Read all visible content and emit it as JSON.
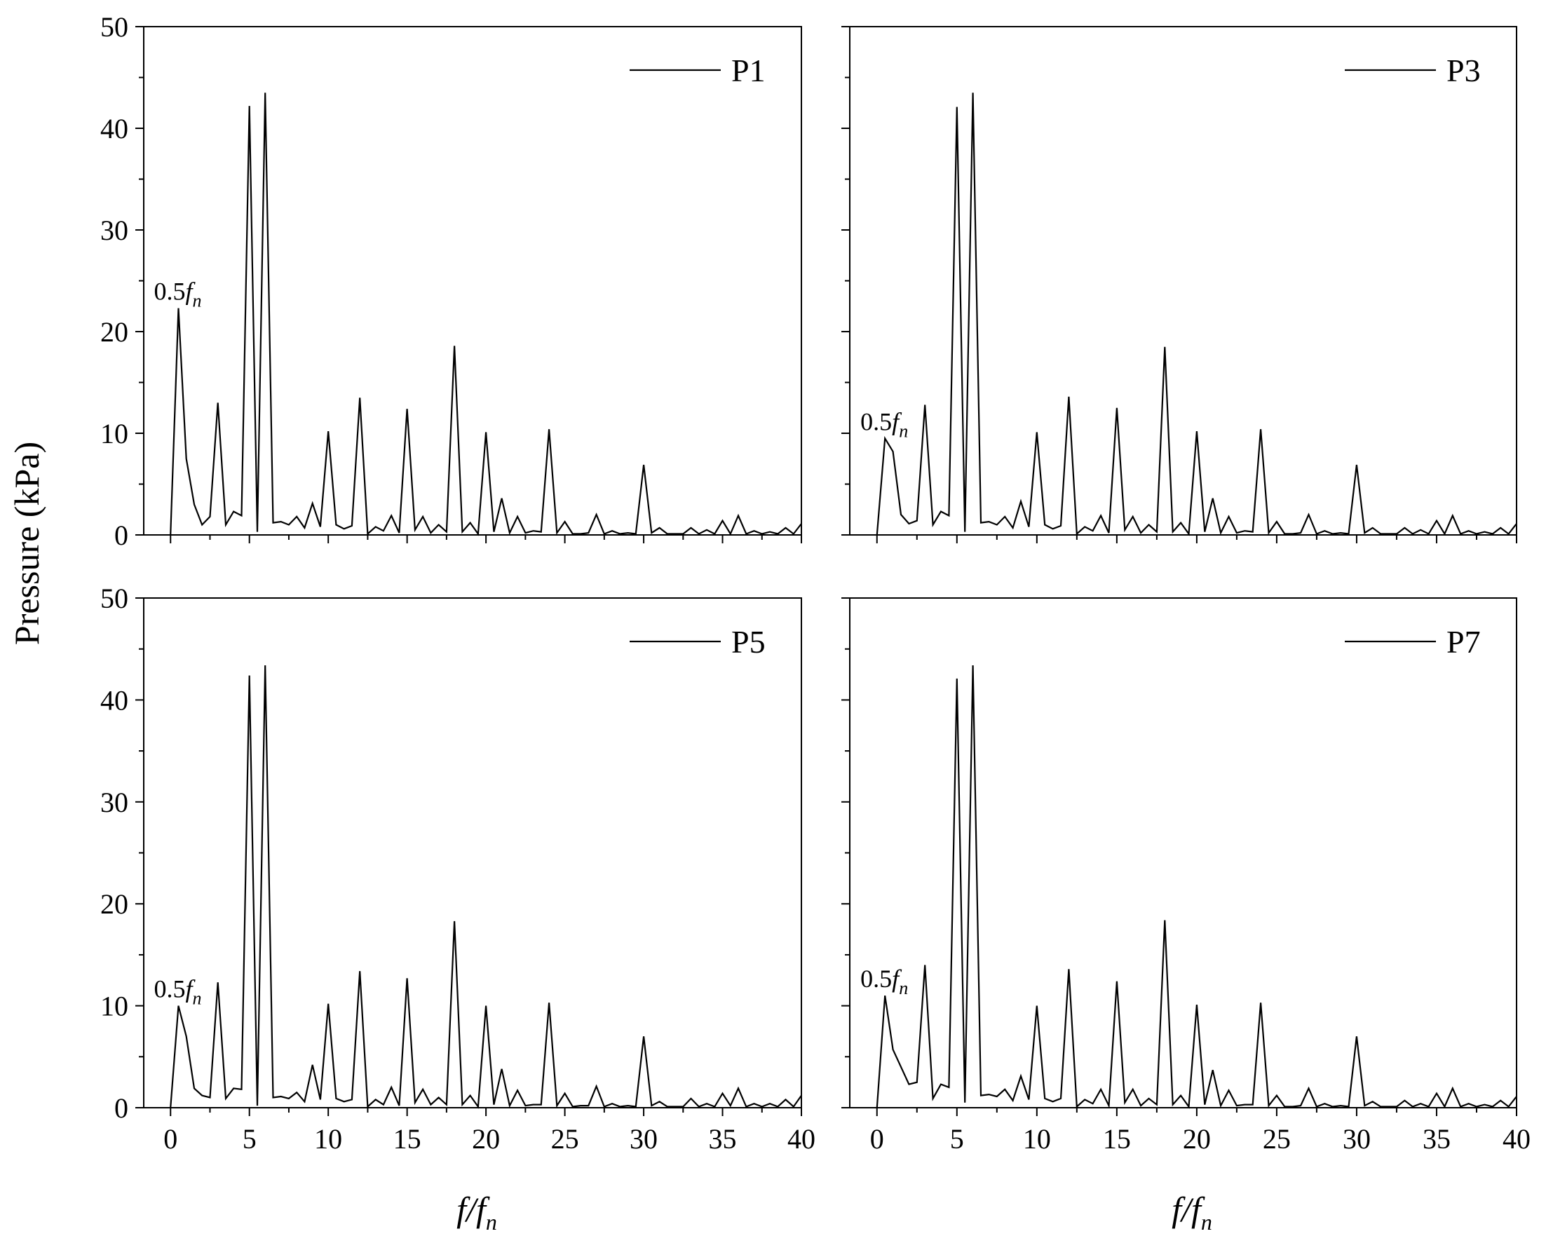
{
  "figure": {
    "ylabel": "Pressure (kPa)",
    "xlabel_main": "f/f",
    "xlabel_sub": "n"
  },
  "chart_data": [
    {
      "type": "line",
      "legend": "P1",
      "annotation": {
        "text": "0.5f",
        "sub": "n",
        "x": 0.5,
        "y": 22.3
      },
      "xlim": [
        -1.7,
        40
      ],
      "ylim": [
        0,
        50
      ],
      "xticks": [
        0,
        5,
        10,
        15,
        20,
        25,
        30,
        35,
        40
      ],
      "yticks": [
        0,
        10,
        20,
        30,
        40,
        50
      ],
      "x": [
        0,
        0.5,
        1,
        1.5,
        2,
        2.5,
        3,
        3.5,
        4,
        4.5,
        5,
        5.5,
        6,
        6.5,
        7,
        7.5,
        8,
        8.5,
        9,
        9.5,
        10,
        10.5,
        11,
        11.5,
        12,
        12.5,
        13,
        13.5,
        14,
        14.5,
        15,
        15.5,
        16,
        16.5,
        17,
        17.5,
        18,
        18.5,
        19,
        19.5,
        20,
        20.5,
        21,
        21.5,
        22,
        22.5,
        23,
        23.5,
        24,
        24.5,
        25,
        25.5,
        26,
        26.5,
        27,
        27.5,
        28,
        28.5,
        29,
        29.5,
        30,
        30.5,
        31,
        31.5,
        32,
        32.5,
        33,
        33.5,
        34,
        34.5,
        35,
        35.5,
        36,
        36.5,
        37,
        37.5,
        38,
        38.5,
        39,
        39.5,
        40
      ],
      "y": [
        0,
        22.3,
        7.5,
        3.0,
        1.0,
        1.8,
        13.0,
        1.0,
        2.3,
        1.9,
        42.2,
        0.3,
        43.5,
        1.2,
        1.3,
        1.0,
        1.8,
        0.7,
        3.1,
        0.8,
        10.2,
        1.0,
        0.6,
        0.9,
        13.5,
        0.1,
        0.8,
        0.4,
        1.9,
        0.2,
        12.4,
        0.5,
        1.8,
        0.2,
        1.0,
        0.3,
        18.6,
        0.3,
        1.2,
        0.1,
        10.1,
        0.3,
        3.6,
        0.2,
        1.8,
        0.2,
        0.4,
        0.3,
        10.4,
        0.2,
        1.3,
        0.1,
        0.1,
        0.2,
        2.0,
        0.1,
        0.4,
        0.1,
        0.2,
        0.1,
        6.9,
        0.2,
        0.7,
        0.1,
        0.1,
        0.1,
        0.7,
        0.1,
        0.5,
        0.1,
        1.4,
        0.1,
        1.9,
        0.1,
        0.4,
        0.1,
        0.3,
        0.1,
        0.7,
        0.1,
        1.1
      ]
    },
    {
      "type": "line",
      "legend": "P3",
      "annotation": {
        "text": "0.5f",
        "sub": "n",
        "x": 0.5,
        "y": 9.5
      },
      "xlim": [
        -1.7,
        40
      ],
      "ylim": [
        0,
        50
      ],
      "xticks": [
        0,
        5,
        10,
        15,
        20,
        25,
        30,
        35,
        40
      ],
      "yticks": [
        0,
        10,
        20,
        30,
        40,
        50
      ],
      "x": [
        0,
        0.5,
        1,
        1.5,
        2,
        2.5,
        3,
        3.5,
        4,
        4.5,
        5,
        5.5,
        6,
        6.5,
        7,
        7.5,
        8,
        8.5,
        9,
        9.5,
        10,
        10.5,
        11,
        11.5,
        12,
        12.5,
        13,
        13.5,
        14,
        14.5,
        15,
        15.5,
        16,
        16.5,
        17,
        17.5,
        18,
        18.5,
        19,
        19.5,
        20,
        20.5,
        21,
        21.5,
        22,
        22.5,
        23,
        23.5,
        24,
        24.5,
        25,
        25.5,
        26,
        26.5,
        27,
        27.5,
        28,
        28.5,
        29,
        29.5,
        30,
        30.5,
        31,
        31.5,
        32,
        32.5,
        33,
        33.5,
        34,
        34.5,
        35,
        35.5,
        36,
        36.5,
        37,
        37.5,
        38,
        38.5,
        39,
        39.5,
        40
      ],
      "y": [
        0,
        9.5,
        8.2,
        2.0,
        1.1,
        1.4,
        12.8,
        1.0,
        2.3,
        1.9,
        42.1,
        0.3,
        43.5,
        1.2,
        1.3,
        1.0,
        1.8,
        0.7,
        3.3,
        0.8,
        10.1,
        1.0,
        0.6,
        0.9,
        13.6,
        0.1,
        0.8,
        0.4,
        1.9,
        0.2,
        12.5,
        0.5,
        1.8,
        0.2,
        1.0,
        0.3,
        18.5,
        0.3,
        1.2,
        0.1,
        10.2,
        0.3,
        3.6,
        0.2,
        1.8,
        0.2,
        0.4,
        0.3,
        10.4,
        0.2,
        1.3,
        0.1,
        0.1,
        0.2,
        2.0,
        0.1,
        0.4,
        0.1,
        0.2,
        0.1,
        6.9,
        0.2,
        0.7,
        0.1,
        0.1,
        0.1,
        0.7,
        0.1,
        0.5,
        0.1,
        1.4,
        0.1,
        1.9,
        0.1,
        0.4,
        0.1,
        0.3,
        0.1,
        0.7,
        0.1,
        1.1
      ]
    },
    {
      "type": "line",
      "legend": "P5",
      "annotation": {
        "text": "0.5f",
        "sub": "n",
        "x": 0.5,
        "y": 10.0
      },
      "xlim": [
        -1.7,
        40
      ],
      "ylim": [
        0,
        50
      ],
      "xticks": [
        0,
        5,
        10,
        15,
        20,
        25,
        30,
        35,
        40
      ],
      "yticks": [
        0,
        10,
        20,
        30,
        40,
        50
      ],
      "x": [
        0,
        0.5,
        1,
        1.5,
        2,
        2.5,
        3,
        3.5,
        4,
        4.5,
        5,
        5.5,
        6,
        6.5,
        7,
        7.5,
        8,
        8.5,
        9,
        9.5,
        10,
        10.5,
        11,
        11.5,
        12,
        12.5,
        13,
        13.5,
        14,
        14.5,
        15,
        15.5,
        16,
        16.5,
        17,
        17.5,
        18,
        18.5,
        19,
        19.5,
        20,
        20.5,
        21,
        21.5,
        22,
        22.5,
        23,
        23.5,
        24,
        24.5,
        25,
        25.5,
        26,
        26.5,
        27,
        27.5,
        28,
        28.5,
        29,
        29.5,
        30,
        30.5,
        31,
        31.5,
        32,
        32.5,
        33,
        33.5,
        34,
        34.5,
        35,
        35.5,
        36,
        36.5,
        37,
        37.5,
        38,
        38.5,
        39,
        39.5,
        40
      ],
      "y": [
        0,
        10.0,
        7.0,
        1.9,
        1.2,
        1.0,
        12.3,
        0.9,
        1.9,
        1.8,
        42.4,
        0.2,
        43.4,
        1.0,
        1.1,
        0.9,
        1.5,
        0.6,
        4.2,
        0.8,
        10.2,
        0.9,
        0.6,
        0.8,
        13.4,
        0.1,
        0.8,
        0.3,
        2.0,
        0.2,
        12.7,
        0.5,
        1.8,
        0.3,
        1.0,
        0.3,
        18.3,
        0.3,
        1.2,
        0.1,
        10.0,
        0.3,
        3.8,
        0.2,
        1.7,
        0.2,
        0.3,
        0.3,
        10.3,
        0.2,
        1.4,
        0.1,
        0.2,
        0.2,
        2.1,
        0.1,
        0.4,
        0.1,
        0.2,
        0.1,
        7.0,
        0.2,
        0.6,
        0.1,
        0.1,
        0.1,
        0.9,
        0.1,
        0.4,
        0.1,
        1.4,
        0.2,
        1.9,
        0.1,
        0.4,
        0.1,
        0.4,
        0.1,
        0.8,
        0.1,
        1.2
      ]
    },
    {
      "type": "line",
      "legend": "P7",
      "annotation": {
        "text": "0.5f",
        "sub": "n",
        "x": 0.5,
        "y": 11.0
      },
      "xlim": [
        -1.7,
        40
      ],
      "ylim": [
        0,
        50
      ],
      "xticks": [
        0,
        5,
        10,
        15,
        20,
        25,
        30,
        35,
        40
      ],
      "yticks": [
        0,
        10,
        20,
        30,
        40,
        50
      ],
      "x": [
        0,
        0.5,
        1,
        1.5,
        2,
        2.5,
        3,
        3.5,
        4,
        4.5,
        5,
        5.5,
        6,
        6.5,
        7,
        7.5,
        8,
        8.5,
        9,
        9.5,
        10,
        10.5,
        11,
        11.5,
        12,
        12.5,
        13,
        13.5,
        14,
        14.5,
        15,
        15.5,
        16,
        16.5,
        17,
        17.5,
        18,
        18.5,
        19,
        19.5,
        20,
        20.5,
        21,
        21.5,
        22,
        22.5,
        23,
        23.5,
        24,
        24.5,
        25,
        25.5,
        26,
        26.5,
        27,
        27.5,
        28,
        28.5,
        29,
        29.5,
        30,
        30.5,
        31,
        31.5,
        32,
        32.5,
        33,
        33.5,
        34,
        34.5,
        35,
        35.5,
        36,
        36.5,
        37,
        37.5,
        38,
        38.5,
        39,
        39.5,
        40
      ],
      "y": [
        0,
        11.0,
        5.7,
        4.0,
        2.3,
        2.5,
        14.0,
        0.9,
        2.3,
        2.0,
        42.1,
        0.5,
        43.4,
        1.2,
        1.3,
        1.1,
        1.8,
        0.7,
        3.1,
        0.8,
        10.0,
        0.9,
        0.6,
        0.9,
        13.6,
        0.1,
        0.8,
        0.4,
        1.8,
        0.2,
        12.4,
        0.5,
        1.8,
        0.2,
        0.9,
        0.3,
        18.4,
        0.3,
        1.2,
        0.1,
        10.1,
        0.3,
        3.7,
        0.2,
        1.7,
        0.2,
        0.3,
        0.3,
        10.3,
        0.2,
        1.2,
        0.1,
        0.1,
        0.2,
        1.9,
        0.1,
        0.4,
        0.1,
        0.2,
        0.1,
        7.0,
        0.2,
        0.6,
        0.1,
        0.1,
        0.1,
        0.7,
        0.1,
        0.4,
        0.1,
        1.4,
        0.1,
        1.9,
        0.1,
        0.4,
        0.1,
        0.3,
        0.1,
        0.7,
        0.1,
        1.1
      ]
    }
  ]
}
